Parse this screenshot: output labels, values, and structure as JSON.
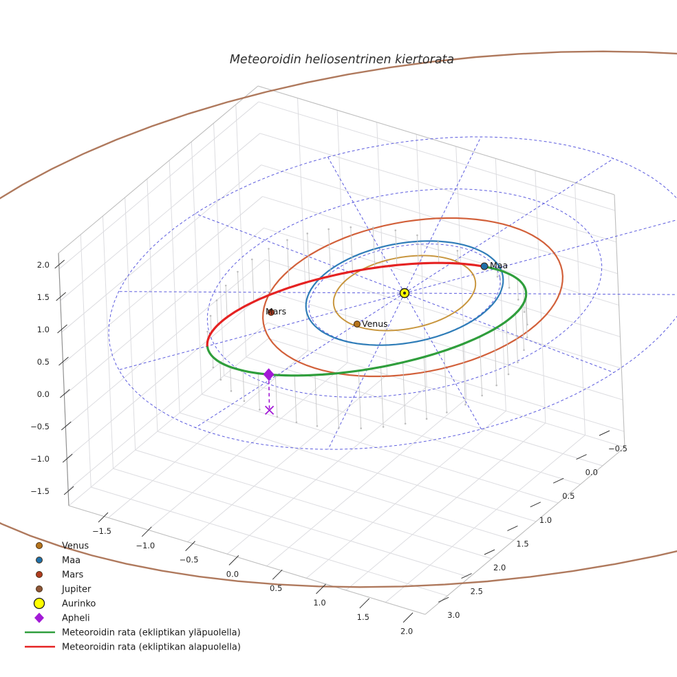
{
  "chart_data": {
    "type": "3d-orbit-plot",
    "title": "Meteoroidin heliosentrinen kiertorata",
    "axes": {
      "x": {
        "ticks": [
          "−1.5",
          "−1.0",
          "−0.5",
          "0.0",
          "0.5",
          "1.0",
          "1.5",
          "2.0"
        ]
      },
      "y": {
        "ticks": [
          "−0.5",
          "0.0",
          "0.5",
          "1.0",
          "1.5",
          "2.0",
          "2.5",
          "3.0"
        ]
      },
      "z": {
        "ticks": [
          "2.0",
          "1.5",
          "1.0",
          "0.5",
          "0.0",
          "−0.5",
          "−1.0",
          "−1.5"
        ]
      }
    },
    "grid": {
      "polar_radii_au": [
        1,
        2,
        3
      ],
      "spoke_count": 12,
      "polar_color": "#3d3dd8",
      "wall_grid_color": "#dcdce0",
      "edge_color": "#bdbdbd",
      "spine_color": "#909090"
    },
    "bodies": [
      {
        "name": "venus",
        "label": "Venus",
        "orbit_radius_au": 0.72,
        "orbit_color": "#c8963e",
        "marker_color": "#b5741c"
      },
      {
        "name": "maa",
        "label": "Maa",
        "orbit_radius_au": 1.0,
        "orbit_color": "#2f7db8",
        "marker_color": "#1f6fa8"
      },
      {
        "name": "mars",
        "label": "Mars",
        "orbit_radius_au": 1.52,
        "orbit_color": "#d2603a",
        "marker_color": "#b03c20"
      },
      {
        "name": "jupiter",
        "label": "Jupiter",
        "orbit_radius_au": 5.2,
        "orbit_color": "#ab7254",
        "marker_color": "#8e5638"
      },
      {
        "name": "aurinko",
        "label": "Aurinko",
        "orbit_radius_au": 0,
        "orbit_color": "#ffff00",
        "marker_color": "#ffff00"
      }
    ],
    "meteoroid": {
      "above_label": "Meteoroidin rata (ekliptikan yläpuolella)",
      "above_color": "#2f9e3c",
      "below_label": "Meteoroidin rata (ekliptikan alapuolella)",
      "below_color": "#e52222",
      "aphelion_label": "Apheli",
      "aphelion_color": "#a21ad6"
    },
    "legend": [
      {
        "label": "Venus",
        "type": "dot",
        "color": "#b5741c"
      },
      {
        "label": "Maa",
        "type": "dot",
        "color": "#1f6fa8"
      },
      {
        "label": "Mars",
        "type": "dot",
        "color": "#b03c20"
      },
      {
        "label": "Jupiter",
        "type": "dot",
        "color": "#8e5638"
      },
      {
        "label": "Aurinko",
        "type": "circle",
        "color": "#ffff00"
      },
      {
        "label": "Apheli",
        "type": "diamond",
        "color": "#a21ad6"
      },
      {
        "label": "Meteoroidin rata (ekliptikan yläpuolella)",
        "type": "line",
        "color": "#2f9e3c"
      },
      {
        "label": "Meteoroidin rata (ekliptikan alapuolella)",
        "type": "line",
        "color": "#e52222"
      }
    ]
  }
}
